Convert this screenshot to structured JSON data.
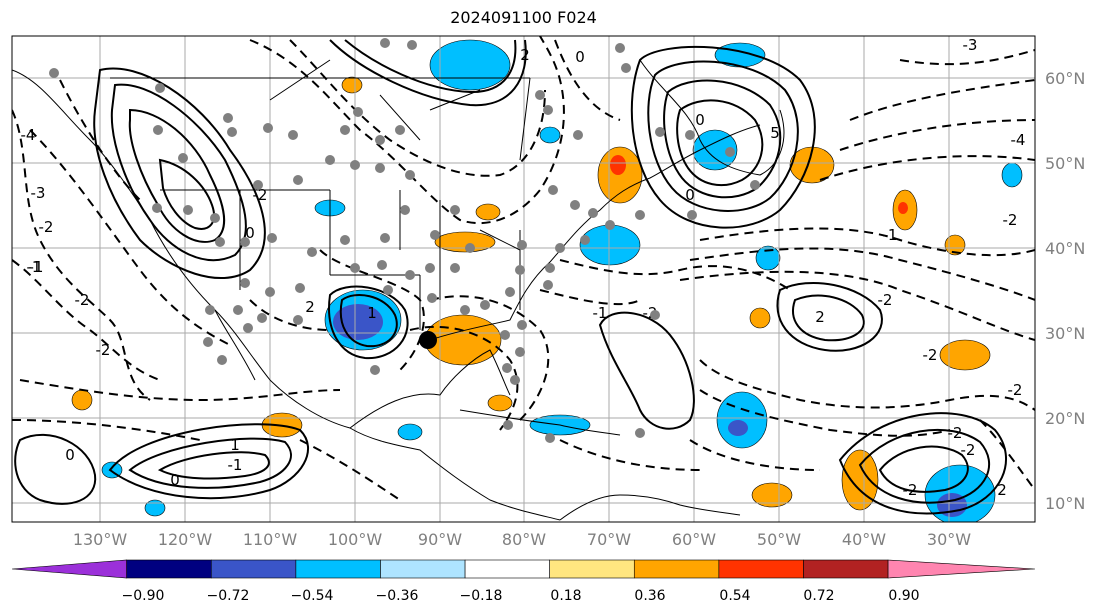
{
  "title": "2024091100 F024",
  "lat_labels": [
    "60°N",
    "50°N",
    "40°N",
    "30°N",
    "20°N",
    "10°N"
  ],
  "lon_labels": [
    "130°W",
    "120°W",
    "110°W",
    "100°W",
    "90°W",
    "80°W",
    "70°W",
    "60°W",
    "50°W",
    "40°W",
    "30°W"
  ],
  "colorbar": {
    "ticks": [
      "−0.90",
      "−0.72",
      "−0.54",
      "−0.36",
      "−0.18",
      "0.18",
      "0.36",
      "0.54",
      "0.72",
      "0.90"
    ],
    "colors": [
      "#9b30d9",
      "#000080",
      "#3a55c8",
      "#00bfff",
      "#aee4ff",
      "#ffffff",
      "#ffe680",
      "#ffa500",
      "#ff3300",
      "#b22222",
      "#ff85b0"
    ]
  },
  "contour_labels": [
    "-4",
    "-3",
    "-2",
    "-1",
    "-2",
    "0",
    "2",
    "1",
    "-1",
    "0",
    "5",
    "-3",
    "-4",
    "-2",
    "-1",
    "0",
    "0",
    "-2",
    "-1",
    "2",
    "-2",
    "-2",
    "2",
    "0",
    "-2",
    "-2",
    "-1",
    "2",
    "1",
    "0",
    "-2",
    "-2",
    "-2",
    "-2"
  ],
  "colors": {
    "positive_contour": "#000000",
    "negative_contour": "#000000",
    "marker": "#808080",
    "grid": "#aaaaaa"
  }
}
